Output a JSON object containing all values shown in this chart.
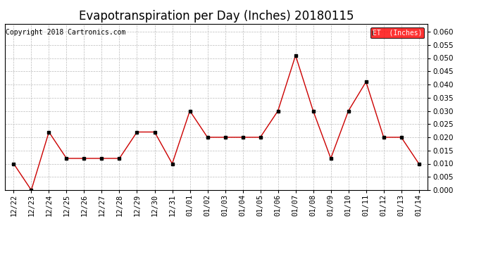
{
  "title": "Evapotranspiration per Day (Inches) 20180115",
  "copyright": "Copyright 2018 Cartronics.com",
  "legend_label": "ET  (Inches)",
  "legend_bg": "#ff0000",
  "legend_text_color": "#ffffff",
  "x_labels": [
    "12/22",
    "12/23",
    "12/24",
    "12/25",
    "12/26",
    "12/27",
    "12/28",
    "12/29",
    "12/30",
    "12/31",
    "01/01",
    "01/02",
    "01/03",
    "01/04",
    "01/05",
    "01/06",
    "01/07",
    "01/08",
    "01/09",
    "01/10",
    "01/11",
    "01/12",
    "01/13",
    "01/14"
  ],
  "y_values": [
    0.01,
    0.0,
    0.022,
    0.012,
    0.012,
    0.012,
    0.012,
    0.022,
    0.022,
    0.01,
    0.03,
    0.02,
    0.02,
    0.02,
    0.02,
    0.03,
    0.051,
    0.03,
    0.012,
    0.03,
    0.041,
    0.02,
    0.02,
    0.01
  ],
  "line_color": "#cc0000",
  "marker_color": "#000000",
  "marker_size": 3,
  "ylim": [
    0.0,
    0.063
  ],
  "yticks": [
    0.0,
    0.005,
    0.01,
    0.015,
    0.02,
    0.025,
    0.03,
    0.035,
    0.04,
    0.045,
    0.05,
    0.055,
    0.06
  ],
  "grid_color": "#bbbbbb",
  "background_color": "#ffffff",
  "title_fontsize": 12,
  "copyright_fontsize": 7,
  "tick_fontsize": 7.5
}
